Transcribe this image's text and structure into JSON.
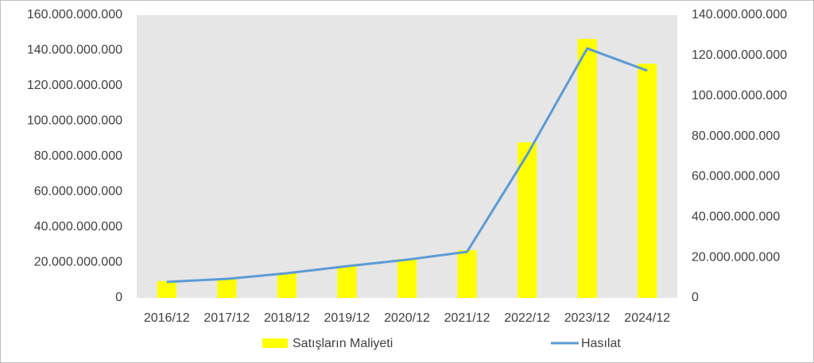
{
  "chart_data": {
    "type": "combo",
    "categories": [
      "2016/12",
      "2017/12",
      "2018/12",
      "2019/12",
      "2020/12",
      "2021/12",
      "2022/12",
      "2023/12",
      "2024/12"
    ],
    "series": [
      {
        "name": "Satışların Maliyeti",
        "type": "bar",
        "axis": "y",
        "color": "#ffff00",
        "values": [
          9500000000,
          11000000000,
          14000000000,
          18000000000,
          22000000000,
          27000000000,
          88000000000,
          146500000000,
          132500000000
        ]
      },
      {
        "name": "Hasılat",
        "type": "line",
        "axis": "y2",
        "color": "#5b9bd5",
        "values": [
          7900000000,
          9400000000,
          12200000000,
          15700000000,
          18900000000,
          22800000000,
          70800000000,
          123500000000,
          112500000000
        ]
      }
    ],
    "ylim": [
      0,
      160000000000
    ],
    "yticks": [
      0,
      {
        "value": 20000000000,
        "label": "20.000.000.000"
      },
      {
        "value": 40000000000,
        "label": "40.000.000.000"
      },
      {
        "value": 60000000000,
        "label": "60.000.000.000"
      },
      {
        "value": 80000000000,
        "label": "80.000.000.000"
      },
      {
        "value": 100000000000,
        "label": "100.000.000.000"
      },
      {
        "value": 120000000000,
        "label": "120.000.000.000"
      },
      {
        "value": 140000000000,
        "label": "140.000.000.000"
      },
      {
        "value": 160000000000,
        "label": "160.000.000.000"
      }
    ],
    "y2lim": [
      0,
      140000000000
    ],
    "y2ticks": [
      0,
      {
        "value": 20000000000,
        "label": "20.000.000.000"
      },
      {
        "value": 40000000000,
        "label": "40.000.000.000"
      },
      {
        "value": 60000000000,
        "label": "60.000.000.000"
      },
      {
        "value": 80000000000,
        "label": "80.000.000.000"
      },
      {
        "value": 100000000000,
        "label": "100.000.000.000"
      },
      {
        "value": 120000000000,
        "label": "120.000.000.000"
      },
      {
        "value": 140000000000,
        "label": "140.000.000.000"
      }
    ],
    "legend": "bottom"
  }
}
